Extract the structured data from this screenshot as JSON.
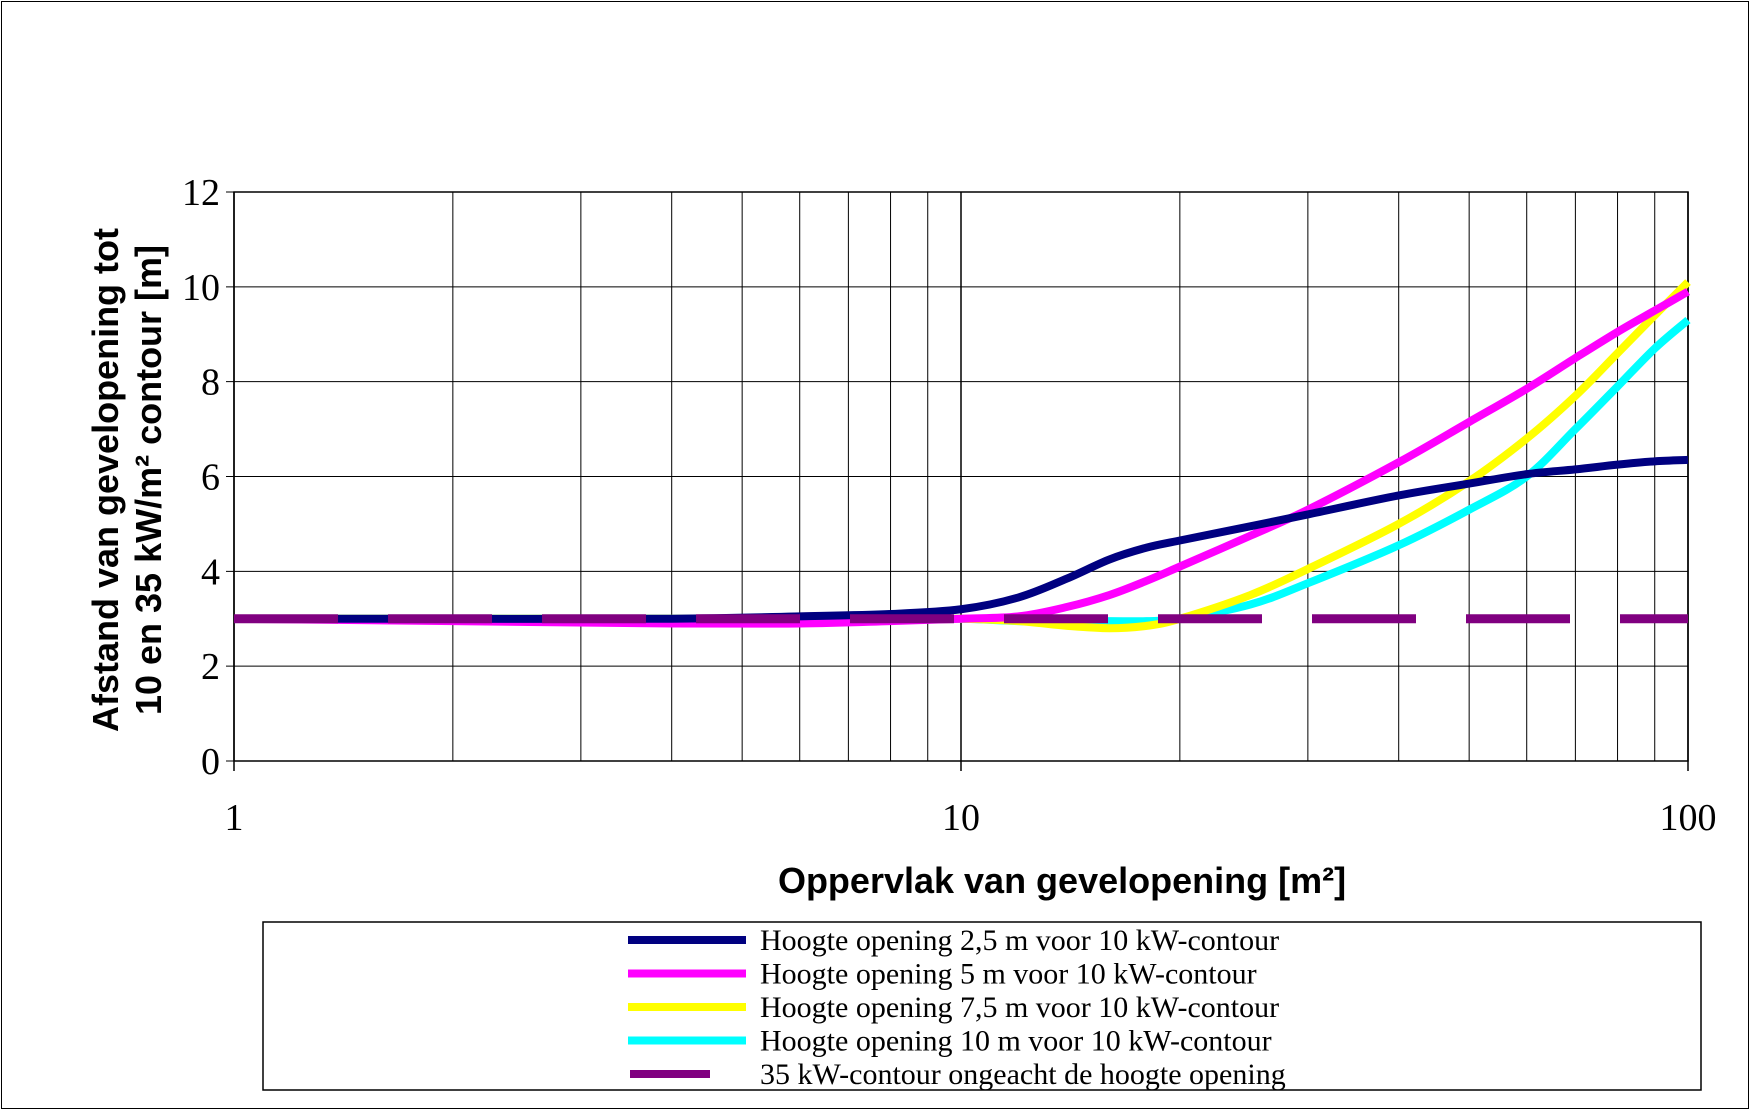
{
  "chart_data": {
    "type": "line",
    "title": "",
    "xlabel": "Oppervlak van gevelopening [m²]",
    "ylabel_line1": "Afstand van gevelopening tot",
    "ylabel_line2": "10 en 35 kW/m² contour [m]",
    "x_scale": "log",
    "xlim": [
      1,
      100
    ],
    "ylim": [
      0,
      12
    ],
    "x_ticks": [
      "1",
      "10",
      "100"
    ],
    "y_ticks": [
      "0",
      "2",
      "4",
      "6",
      "8",
      "10",
      "12"
    ],
    "grid": true,
    "legend_placement": "bottom (below plot, boxed)",
    "series": [
      {
        "name": "Hoogte opening 2,5 m voor 10 kW-contour",
        "color": "#000080",
        "dash": false,
        "x": [
          1,
          2,
          4,
          6,
          8,
          10,
          12,
          14,
          16,
          18,
          20,
          25,
          30,
          40,
          50,
          60,
          70,
          80,
          90,
          100
        ],
        "y": [
          3.0,
          3.0,
          3.0,
          3.05,
          3.1,
          3.2,
          3.45,
          3.85,
          4.25,
          4.5,
          4.65,
          4.95,
          5.2,
          5.6,
          5.85,
          6.05,
          6.15,
          6.25,
          6.32,
          6.35
        ]
      },
      {
        "name": "Hoogte opening 5 m voor 10 kW-contour",
        "color": "#ff00ff",
        "dash": false,
        "x": [
          1,
          2,
          4,
          6,
          8,
          10,
          12,
          14,
          16,
          18,
          20,
          25,
          30,
          40,
          50,
          60,
          70,
          80,
          90,
          100
        ],
        "y": [
          3.0,
          2.95,
          2.9,
          2.9,
          2.95,
          3.0,
          3.05,
          3.25,
          3.5,
          3.8,
          4.1,
          4.75,
          5.3,
          6.3,
          7.15,
          7.85,
          8.5,
          9.05,
          9.5,
          9.9
        ]
      },
      {
        "name": "Hoogte opening 7,5 m voor 10 kW-contour",
        "color": "#ffff00",
        "dash": false,
        "x": [
          1,
          2,
          4,
          6,
          8,
          10,
          12,
          14,
          16,
          18,
          20,
          25,
          30,
          40,
          50,
          60,
          70,
          80,
          90,
          100
        ],
        "y": [
          3.0,
          3.0,
          3.0,
          3.0,
          3.0,
          3.0,
          2.95,
          2.85,
          2.8,
          2.85,
          3.0,
          3.5,
          4.05,
          5.0,
          5.9,
          6.8,
          7.7,
          8.6,
          9.4,
          10.1
        ]
      },
      {
        "name": "Hoogte opening 10 m voor 10 kW-contour",
        "color": "#00ffff",
        "dash": false,
        "x": [
          1,
          2,
          4,
          6,
          8,
          10,
          12,
          14,
          16,
          18,
          20,
          25,
          30,
          40,
          50,
          60,
          70,
          80,
          90,
          100
        ],
        "y": [
          3.0,
          3.0,
          3.0,
          3.0,
          3.0,
          3.0,
          2.95,
          2.95,
          2.95,
          2.95,
          3.0,
          3.3,
          3.75,
          4.55,
          5.3,
          6.0,
          7.0,
          7.9,
          8.7,
          9.3
        ]
      },
      {
        "name": "35 kW-contour ongeacht de hoogte opening",
        "color": "#800080",
        "dash": true,
        "x": [
          1,
          100
        ],
        "y": [
          3.0,
          3.0
        ]
      }
    ]
  }
}
